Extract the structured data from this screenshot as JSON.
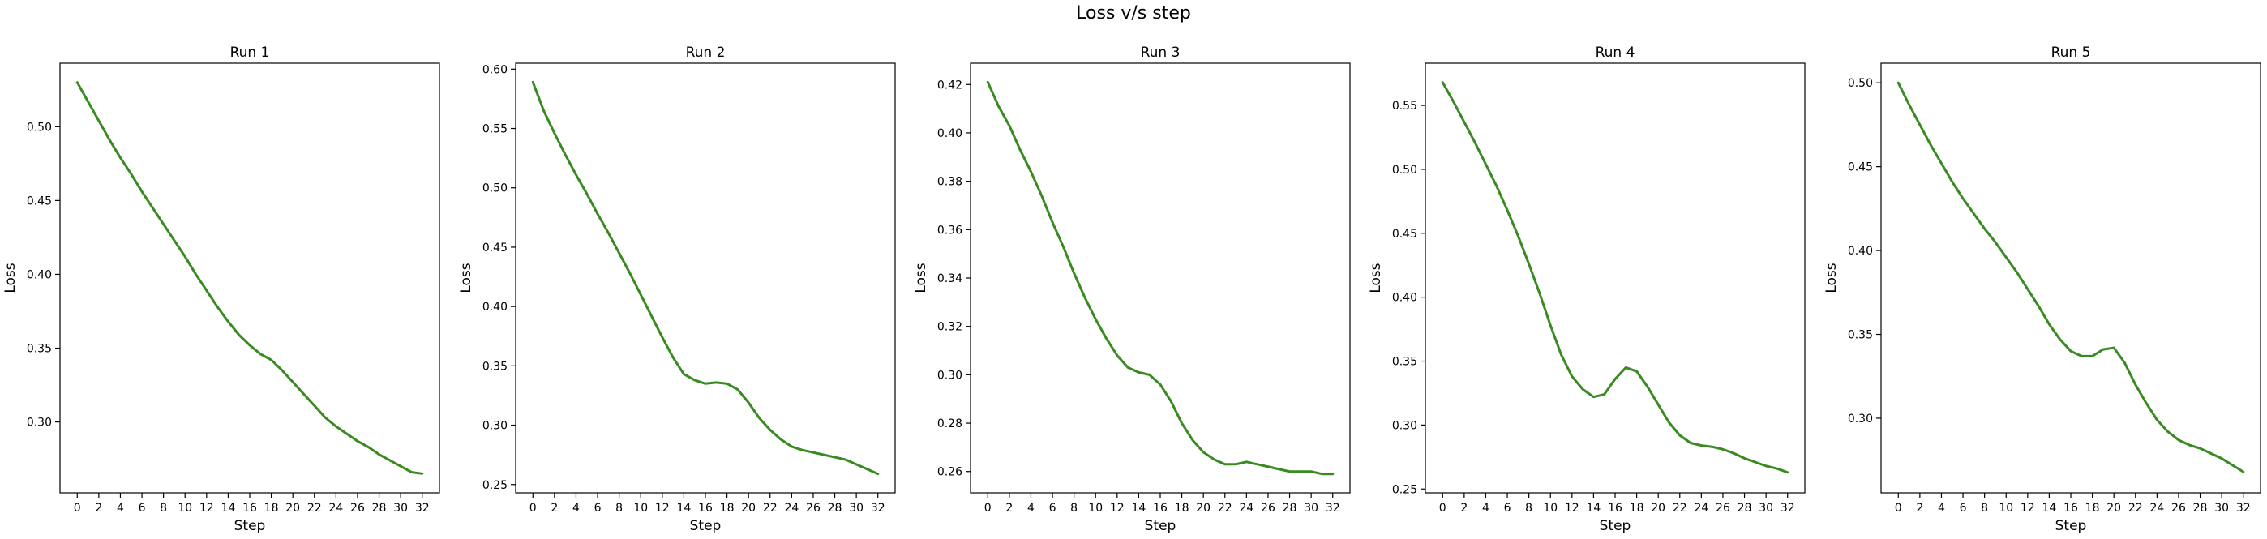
{
  "figure": {
    "title": "Loss v/s step",
    "line_color": "#3a8a22"
  },
  "chart_data": [
    {
      "type": "line",
      "title": "Run 1",
      "xlabel": "Step",
      "ylabel": "Loss",
      "xlim": [
        -1.6,
        33.6
      ],
      "ylim": [
        0.252,
        0.543
      ],
      "xticks": [
        0,
        2,
        4,
        6,
        8,
        10,
        12,
        14,
        16,
        18,
        20,
        22,
        24,
        26,
        28,
        30,
        32
      ],
      "yticks": [
        0.3,
        0.35,
        0.4,
        0.45,
        0.5
      ],
      "x": [
        0,
        1,
        2,
        3,
        4,
        5,
        6,
        7,
        8,
        9,
        10,
        11,
        12,
        13,
        14,
        15,
        16,
        17,
        18,
        19,
        20,
        21,
        22,
        23,
        24,
        25,
        26,
        27,
        28,
        29,
        30,
        31,
        32
      ],
      "y": [
        0.53,
        0.517,
        0.504,
        0.491,
        0.479,
        0.468,
        0.456,
        0.445,
        0.434,
        0.423,
        0.412,
        0.4,
        0.389,
        0.378,
        0.368,
        0.359,
        0.352,
        0.346,
        0.342,
        0.335,
        0.327,
        0.319,
        0.311,
        0.303,
        0.297,
        0.292,
        0.287,
        0.283,
        0.278,
        0.274,
        0.27,
        0.266,
        0.265
      ]
    },
    {
      "type": "line",
      "title": "Run 2",
      "xlabel": "Step",
      "ylabel": "Loss",
      "xlim": [
        -1.6,
        33.6
      ],
      "ylim": [
        0.243,
        0.605
      ],
      "xticks": [
        0,
        2,
        4,
        6,
        8,
        10,
        12,
        14,
        16,
        18,
        20,
        22,
        24,
        26,
        28,
        30,
        32
      ],
      "yticks": [
        0.25,
        0.3,
        0.35,
        0.4,
        0.45,
        0.5,
        0.55,
        0.6
      ],
      "x": [
        0,
        1,
        2,
        3,
        4,
        5,
        6,
        7,
        8,
        9,
        10,
        11,
        12,
        13,
        14,
        15,
        16,
        17,
        18,
        19,
        20,
        21,
        22,
        23,
        24,
        25,
        26,
        27,
        28,
        29,
        30,
        31,
        32
      ],
      "y": [
        0.589,
        0.565,
        0.546,
        0.528,
        0.511,
        0.495,
        0.478,
        0.462,
        0.445,
        0.428,
        0.41,
        0.392,
        0.374,
        0.357,
        0.343,
        0.338,
        0.335,
        0.336,
        0.335,
        0.33,
        0.319,
        0.306,
        0.296,
        0.288,
        0.282,
        0.279,
        0.277,
        0.275,
        0.273,
        0.271,
        0.267,
        0.263,
        0.259
      ]
    },
    {
      "type": "line",
      "title": "Run 3",
      "xlabel": "Step",
      "ylabel": "Loss",
      "xlim": [
        -1.6,
        33.6
      ],
      "ylim": [
        0.2512,
        0.4288
      ],
      "xticks": [
        0,
        2,
        4,
        6,
        8,
        10,
        12,
        14,
        16,
        18,
        20,
        22,
        24,
        26,
        28,
        30,
        32
      ],
      "yticks": [
        0.26,
        0.28,
        0.3,
        0.32,
        0.34,
        0.36,
        0.38,
        0.4,
        0.42
      ],
      "x": [
        0,
        1,
        2,
        3,
        4,
        5,
        6,
        7,
        8,
        9,
        10,
        11,
        12,
        13,
        14,
        15,
        16,
        17,
        18,
        19,
        20,
        21,
        22,
        23,
        24,
        25,
        26,
        27,
        28,
        29,
        30,
        31,
        32
      ],
      "y": [
        0.421,
        0.411,
        0.403,
        0.393,
        0.384,
        0.374,
        0.363,
        0.353,
        0.342,
        0.332,
        0.323,
        0.315,
        0.308,
        0.303,
        0.301,
        0.3,
        0.296,
        0.289,
        0.28,
        0.273,
        0.268,
        0.265,
        0.263,
        0.263,
        0.264,
        0.263,
        0.262,
        0.261,
        0.26,
        0.26,
        0.26,
        0.259,
        0.259
      ]
    },
    {
      "type": "line",
      "title": "Run 4",
      "xlabel": "Step",
      "ylabel": "Loss",
      "xlim": [
        -1.6,
        33.6
      ],
      "ylim": [
        0.247,
        0.583
      ],
      "xticks": [
        0,
        2,
        4,
        6,
        8,
        10,
        12,
        14,
        16,
        18,
        20,
        22,
        24,
        26,
        28,
        30,
        32
      ],
      "yticks": [
        0.25,
        0.3,
        0.35,
        0.4,
        0.45,
        0.5,
        0.55
      ],
      "x": [
        0,
        1,
        2,
        3,
        4,
        5,
        6,
        7,
        8,
        9,
        10,
        11,
        12,
        13,
        14,
        15,
        16,
        17,
        18,
        19,
        20,
        21,
        22,
        23,
        24,
        25,
        26,
        27,
        28,
        29,
        30,
        31,
        32
      ],
      "y": [
        0.568,
        0.553,
        0.537,
        0.521,
        0.504,
        0.487,
        0.468,
        0.448,
        0.426,
        0.403,
        0.378,
        0.355,
        0.338,
        0.328,
        0.322,
        0.324,
        0.336,
        0.345,
        0.342,
        0.33,
        0.316,
        0.302,
        0.292,
        0.286,
        0.284,
        0.283,
        0.281,
        0.278,
        0.274,
        0.271,
        0.268,
        0.266,
        0.263
      ]
    },
    {
      "type": "line",
      "title": "Run 5",
      "xlabel": "Step",
      "ylabel": "Loss",
      "xlim": [
        -1.6,
        33.6
      ],
      "ylim": [
        0.2555,
        0.5117
      ],
      "xticks": [
        0,
        2,
        4,
        6,
        8,
        10,
        12,
        14,
        16,
        18,
        20,
        22,
        24,
        26,
        28,
        30,
        32
      ],
      "yticks": [
        0.3,
        0.35,
        0.4,
        0.45,
        0.5
      ],
      "x": [
        0,
        1,
        2,
        3,
        4,
        5,
        6,
        7,
        8,
        9,
        10,
        11,
        12,
        13,
        14,
        15,
        16,
        17,
        18,
        19,
        20,
        21,
        22,
        23,
        24,
        25,
        26,
        27,
        28,
        29,
        30,
        31,
        32
      ],
      "y": [
        0.5,
        0.487,
        0.475,
        0.463,
        0.452,
        0.441,
        0.431,
        0.422,
        0.413,
        0.405,
        0.396,
        0.387,
        0.377,
        0.367,
        0.356,
        0.347,
        0.34,
        0.337,
        0.337,
        0.341,
        0.342,
        0.333,
        0.32,
        0.309,
        0.299,
        0.292,
        0.287,
        0.284,
        0.282,
        0.279,
        0.276,
        0.272,
        0.268
      ]
    }
  ]
}
